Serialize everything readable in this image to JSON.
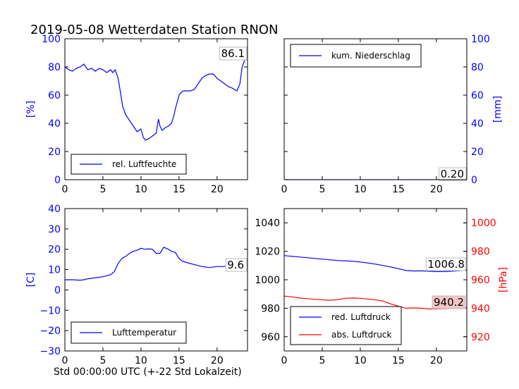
{
  "figure": {
    "title": "2019-05-08 Wetterdaten Station RNON",
    "xlabel": "Std 00:00:00 UTC (+-22 Std Lokalzeit)"
  },
  "colors": {
    "blue": "#0000ff",
    "red": "#ff0000",
    "axes": "#000000",
    "red_box": "#f4c6c6"
  },
  "chart_data": [
    {
      "type": "line",
      "xlim": [
        0,
        24
      ],
      "ylim": [
        0,
        100
      ],
      "x_ticks": [
        "0",
        "5",
        "10",
        "15",
        "20"
      ],
      "y_ticks": [
        "0",
        "20",
        "40",
        "60",
        "80",
        "100"
      ],
      "ylabel": "[%]",
      "legend": {
        "placement": "lower-left"
      },
      "last_value_label": "86.1",
      "series": [
        {
          "name": "rel. Luftfeuchte",
          "color": "#0000ff",
          "x": [
            0,
            0.5,
            1,
            1.5,
            2,
            2.5,
            3,
            3.5,
            4,
            4.5,
            5,
            5.5,
            6,
            6.3,
            6.6,
            7,
            7.3,
            7.6,
            8,
            8.5,
            9,
            9.5,
            10,
            10.3,
            10.6,
            11,
            11.5,
            12,
            12.3,
            12.5,
            12.8,
            13.2,
            13.6,
            14,
            14.3,
            14.6,
            15,
            15.3,
            15.6,
            16,
            16.5,
            17,
            17.5,
            18,
            18.5,
            19,
            19.5,
            20,
            20.5,
            21,
            21.5,
            22,
            22.3,
            22.6,
            23,
            23.3,
            23.7
          ],
          "y": [
            80,
            78,
            77,
            79,
            80,
            82,
            78,
            79,
            77,
            79,
            78,
            76,
            78,
            76,
            78,
            72,
            62,
            52,
            46,
            42,
            38,
            34,
            36,
            30,
            28,
            29,
            31,
            33,
            43,
            38,
            35,
            37,
            38,
            40,
            45,
            52,
            60,
            62,
            63,
            63,
            63,
            64,
            68,
            72,
            74,
            75,
            75,
            72,
            70,
            68,
            66,
            65,
            64,
            63,
            68,
            80,
            86.1
          ]
        }
      ]
    },
    {
      "type": "line",
      "xlim": [
        0,
        24
      ],
      "ylim": [
        0,
        100
      ],
      "x_ticks": [
        "0",
        "5",
        "10",
        "15",
        "20"
      ],
      "y_ticks": [
        "0",
        "20",
        "40",
        "60",
        "80",
        "100"
      ],
      "ylabel": "[mm]",
      "legend": {
        "placement": "upper-left"
      },
      "last_value_label": "0.20",
      "series": [
        {
          "name": "kum. Niederschlag",
          "color": "#0000ff",
          "x": [
            0,
            20.5,
            24
          ],
          "y": [
            0,
            0,
            0.2
          ]
        }
      ]
    },
    {
      "type": "line",
      "xlim": [
        0,
        24
      ],
      "ylim": [
        -30,
        40
      ],
      "x_ticks": [
        "0",
        "5",
        "10",
        "15",
        "20"
      ],
      "y_ticks": [
        "−30",
        "−20",
        "−10",
        "0",
        "10",
        "20",
        "30",
        "40"
      ],
      "ylabel": "[C]",
      "legend": {
        "placement": "lower-left"
      },
      "last_value_label": "9.6",
      "series": [
        {
          "name": "Lufttemperatur",
          "color": "#0000ff",
          "x": [
            0,
            1,
            2,
            2.5,
            3,
            4,
            5,
            6,
            6.5,
            7,
            7.5,
            8,
            8.5,
            9,
            9.5,
            10,
            10.5,
            11,
            11.5,
            12,
            12.5,
            13,
            13.3,
            13.6,
            14,
            14.5,
            15,
            15.5,
            16,
            17,
            18,
            19,
            20,
            21,
            22,
            23,
            24
          ],
          "y": [
            5,
            5,
            4.8,
            5,
            5.5,
            6,
            6.5,
            7.5,
            9,
            13,
            15.5,
            16.5,
            18,
            19,
            19.5,
            20.5,
            20,
            20.2,
            20,
            18,
            18,
            21,
            20.5,
            20,
            19,
            18.5,
            15.5,
            14,
            13.5,
            12.5,
            11.5,
            11,
            11.5,
            11.5,
            11.5,
            10.5,
            9.6
          ]
        }
      ]
    },
    {
      "type": "line",
      "xlim": [
        0,
        24
      ],
      "ylim": [
        950,
        1050
      ],
      "ylim_right": [
        910,
        1010
      ],
      "x_ticks": [
        "0",
        "5",
        "10",
        "15",
        "20"
      ],
      "y_ticks": [
        "960",
        "980",
        "1000",
        "1020",
        "1040"
      ],
      "y_ticks_right": [
        "920",
        "940",
        "960",
        "980",
        "1000"
      ],
      "ylabel_right": "[hPa]",
      "legend": {
        "placement": "lower-left"
      },
      "series": [
        {
          "name": "red. Luftdruck",
          "color": "#0000ff",
          "axis": "left",
          "x": [
            0,
            1,
            2,
            3,
            4,
            5,
            6,
            7,
            8,
            9,
            10,
            11,
            12,
            13,
            14,
            15,
            16,
            17,
            18,
            19,
            20,
            21,
            22,
            23,
            24
          ],
          "y": [
            1017,
            1016.5,
            1016,
            1015.5,
            1015,
            1014.5,
            1014,
            1013.5,
            1013.3,
            1013,
            1012.5,
            1011.8,
            1011,
            1010,
            1009,
            1007.8,
            1006.5,
            1006.2,
            1006.3,
            1006,
            1005.8,
            1005.8,
            1006,
            1006.4,
            1006.8
          ],
          "last_value_label": "1006.8"
        },
        {
          "name": "abs. Luftdruck",
          "color": "#ff0000",
          "axis": "right",
          "x": [
            0,
            1,
            2,
            3,
            4,
            5,
            6,
            7,
            8,
            9,
            10,
            11,
            12,
            13,
            14,
            15,
            16,
            17,
            18,
            19,
            20,
            21,
            22,
            23,
            24
          ],
          "y": [
            948.5,
            948,
            947.2,
            946.8,
            946.3,
            946,
            945.6,
            946,
            947,
            947.2,
            947,
            946.5,
            946,
            945,
            943,
            941.5,
            940,
            940.2,
            940,
            939.5,
            939.5,
            939.6,
            939.8,
            940,
            940.2
          ],
          "last_value_label": "940.2"
        }
      ]
    }
  ]
}
